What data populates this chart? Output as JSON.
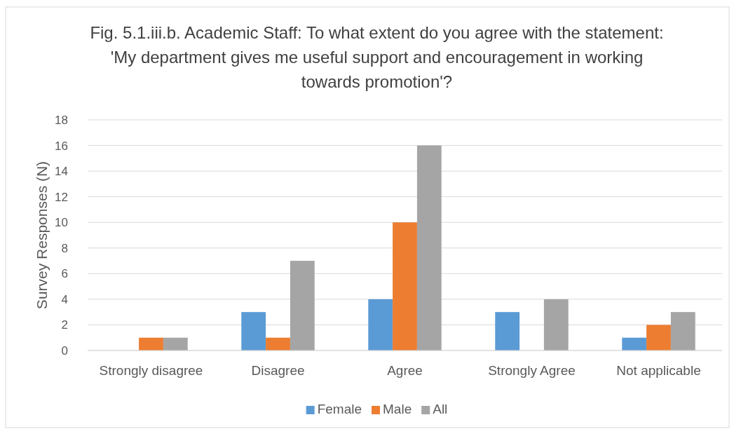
{
  "chart_data": {
    "type": "bar",
    "title": "Fig. 5.1.iii.b. Academic Staff: To what extent do you agree with the statement: 'My department gives me useful support and encouragement in working towards promotion'?",
    "ylabel": "Survey Responses (N)",
    "categories": [
      "Strongly disagree",
      "Disagree",
      "Agree",
      "Strongly Agree",
      "Not applicable"
    ],
    "series": [
      {
        "name": "Female",
        "color": "#5b9bd5",
        "values": [
          0,
          3,
          4,
          3,
          1
        ]
      },
      {
        "name": "Male",
        "color": "#ed7d31",
        "values": [
          1,
          1,
          10,
          0,
          2
        ]
      },
      {
        "name": "All",
        "color": "#a5a5a5",
        "values": [
          1,
          7,
          16,
          4,
          3
        ]
      }
    ],
    "ylim": [
      0,
      18
    ],
    "yticks": [
      0,
      2,
      4,
      6,
      8,
      10,
      12,
      14,
      16,
      18
    ],
    "grid": "y",
    "legend": "bottom"
  }
}
